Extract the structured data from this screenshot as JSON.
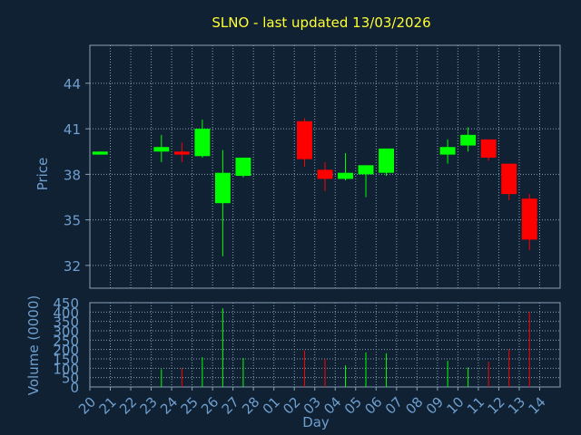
{
  "chart_data": {
    "type": "candlestick",
    "title": "SLNO - last updated 13/03/2026",
    "ylabel": "Price",
    "xlabel": "Day",
    "volume_label": "Volume (0000)",
    "x_ticks": [
      "20",
      "21",
      "22",
      "23",
      "24",
      "25",
      "26",
      "27",
      "28",
      "01",
      "02",
      "03",
      "04",
      "05",
      "06",
      "07",
      "08",
      "09",
      "10",
      "11",
      "12",
      "13",
      "14"
    ],
    "price_ticks": [
      32,
      35,
      38,
      41,
      44
    ],
    "price_ylim": [
      30.5,
      46.5
    ],
    "volume_ticks": [
      0,
      50,
      100,
      150,
      200,
      250,
      300,
      350,
      400,
      450
    ],
    "volume_ylim": [
      0,
      450
    ],
    "grid": true,
    "up_color": "#00ff00",
    "down_color": "#ff0000",
    "candles": [
      {
        "x": "20",
        "open": 39.3,
        "close": 39.5,
        "high": 39.5,
        "low": 39.3,
        "volume": 0
      },
      {
        "x": "23",
        "open": 39.5,
        "close": 39.8,
        "high": 40.6,
        "low": 38.8,
        "volume": 95
      },
      {
        "x": "24",
        "open": 39.5,
        "close": 39.3,
        "high": 40.1,
        "low": 38.8,
        "volume": 100
      },
      {
        "x": "25",
        "open": 39.2,
        "close": 41.0,
        "high": 41.6,
        "low": 39.1,
        "volume": 160
      },
      {
        "x": "26",
        "open": 36.1,
        "close": 38.1,
        "high": 39.6,
        "low": 32.6,
        "volume": 420
      },
      {
        "x": "27",
        "open": 37.9,
        "close": 39.1,
        "high": 39.1,
        "low": 37.8,
        "volume": 155
      },
      {
        "x": "02",
        "open": 41.5,
        "close": 39.0,
        "high": 41.7,
        "low": 38.5,
        "volume": 195
      },
      {
        "x": "03",
        "open": 38.3,
        "close": 37.7,
        "high": 38.8,
        "low": 36.9,
        "volume": 150
      },
      {
        "x": "04",
        "open": 37.7,
        "close": 38.1,
        "high": 39.4,
        "low": 37.6,
        "volume": 115
      },
      {
        "x": "05",
        "open": 38.0,
        "close": 38.6,
        "high": 38.6,
        "low": 36.5,
        "volume": 185
      },
      {
        "x": "06",
        "open": 38.1,
        "close": 39.7,
        "high": 39.7,
        "low": 37.9,
        "volume": 180
      },
      {
        "x": "09",
        "open": 39.3,
        "close": 39.8,
        "high": 40.3,
        "low": 38.7,
        "volume": 140
      },
      {
        "x": "10",
        "open": 39.9,
        "close": 40.6,
        "high": 41.1,
        "low": 39.5,
        "volume": 105
      },
      {
        "x": "11",
        "open": 40.3,
        "close": 39.1,
        "high": 40.3,
        "low": 38.9,
        "volume": 135
      },
      {
        "x": "12",
        "open": 38.7,
        "close": 36.7,
        "high": 38.7,
        "low": 36.3,
        "volume": 200
      },
      {
        "x": "13",
        "open": 36.4,
        "close": 33.7,
        "high": 36.7,
        "low": 33.0,
        "volume": 400
      }
    ]
  }
}
